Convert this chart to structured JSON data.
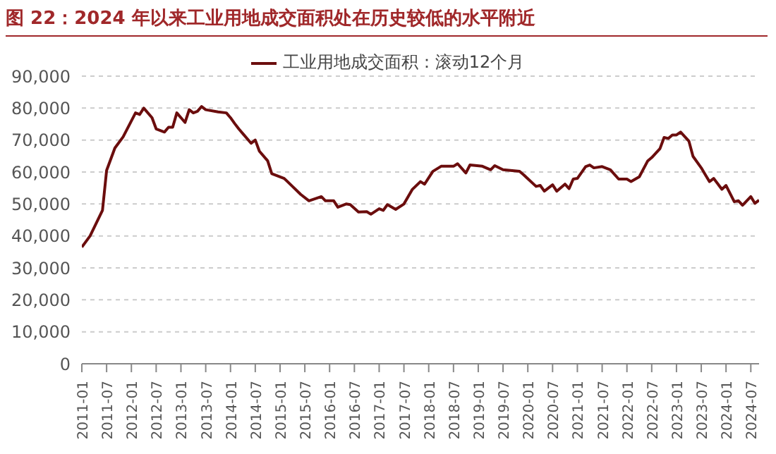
{
  "chart_data": {
    "type": "line",
    "title": "图 22：2024 年以来工业用地成交面积处在历史较低的水平附近",
    "x": [
      "2011-01",
      "2011-03",
      "2011-06",
      "2011-07",
      "2011-09",
      "2011-11",
      "2012-02",
      "2012-03",
      "2012-04",
      "2012-06",
      "2012-07",
      "2012-09",
      "2012-10",
      "2012-11",
      "2012-12",
      "2013-02",
      "2013-03",
      "2013-04",
      "2013-05",
      "2013-06",
      "2013-07",
      "2013-10",
      "2013-12",
      "2014-01",
      "2014-02",
      "2014-03",
      "2014-04",
      "2014-06",
      "2014-07",
      "2014-08",
      "2014-10",
      "2014-11",
      "2015-02",
      "2015-04",
      "2015-06",
      "2015-08",
      "2015-11",
      "2015-12",
      "2016-02",
      "2016-03",
      "2016-05",
      "2016-06",
      "2016-08",
      "2016-10",
      "2016-11",
      "2017-01",
      "2017-02",
      "2017-03",
      "2017-05",
      "2017-07",
      "2017-09",
      "2017-11",
      "2017-12",
      "2018-02",
      "2018-04",
      "2018-07",
      "2018-08",
      "2018-10",
      "2018-11",
      "2019-02",
      "2019-04",
      "2019-05",
      "2019-07",
      "2019-11",
      "2019-12",
      "2020-03",
      "2020-04",
      "2020-05",
      "2020-07",
      "2020-08",
      "2020-10",
      "2020-11",
      "2020-12",
      "2021-01",
      "2021-03",
      "2021-04",
      "2021-05",
      "2021-07",
      "2021-09",
      "2021-11",
      "2022-01",
      "2022-02",
      "2022-04",
      "2022-06",
      "2022-07",
      "2022-09",
      "2022-10",
      "2022-11",
      "2022-12",
      "2023-01",
      "2023-02",
      "2023-04",
      "2023-05",
      "2023-07",
      "2023-08",
      "2023-09",
      "2023-10",
      "2023-12",
      "2024-01",
      "2024-03",
      "2024-04",
      "2024-05",
      "2024-07",
      "2024-08",
      "2024-09"
    ],
    "series": [
      {
        "name": "工业用地成交面积：滚动12个月",
        "color": "#6b0d0d",
        "values": [
          36500,
          40000,
          48000,
          60500,
          67500,
          71000,
          78500,
          78000,
          80000,
          77000,
          73500,
          72500,
          74000,
          74000,
          78500,
          75500,
          79500,
          78500,
          79000,
          80500,
          79500,
          78800,
          78500,
          77000,
          75200,
          73500,
          72000,
          69000,
          70000,
          66500,
          63500,
          59500,
          58000,
          55500,
          53000,
          51000,
          52300,
          51000,
          51000,
          49000,
          50000,
          49800,
          47500,
          47600,
          46800,
          48500,
          48000,
          49800,
          48300,
          50000,
          54500,
          57000,
          56200,
          60200,
          61800,
          61800,
          62600,
          59700,
          62200,
          61800,
          60700,
          62000,
          60700,
          60200,
          59100,
          55500,
          55800,
          54000,
          56000,
          54000,
          56200,
          54800,
          57800,
          58000,
          61700,
          62200,
          61300,
          61700,
          60700,
          57800,
          57800,
          57000,
          58500,
          63400,
          64500,
          67300,
          70800,
          70500,
          71600,
          71600,
          72500,
          69700,
          64900,
          61300,
          59100,
          57000,
          58000,
          54600,
          55800,
          50700,
          51000,
          49600,
          52300,
          50200,
          51200
        ]
      }
    ],
    "xlim": [
      "2011-01",
      "2024-09"
    ],
    "xticks": [
      "2011-01",
      "2011-07",
      "2012-01",
      "2012-07",
      "2013-01",
      "2013-07",
      "2014-01",
      "2014-07",
      "2015-01",
      "2015-07",
      "2016-01",
      "2016-07",
      "2017-01",
      "2017-07",
      "2018-01",
      "2018-07",
      "2019-01",
      "2019-07",
      "2020-01",
      "2020-07",
      "2021-01",
      "2021-07",
      "2022-01",
      "2022-07",
      "2023-01",
      "2023-07",
      "2024-01",
      "2024-07"
    ],
    "ylim": [
      0,
      90000
    ],
    "yticks": [
      {
        "value": 0,
        "label": "0"
      },
      {
        "value": 10000,
        "label": "10,000"
      },
      {
        "value": 20000,
        "label": "20,000"
      },
      {
        "value": 30000,
        "label": "30,000"
      },
      {
        "value": 40000,
        "label": "40,000"
      },
      {
        "value": 50000,
        "label": "50,000"
      },
      {
        "value": 60000,
        "label": "60,000"
      },
      {
        "value": 70000,
        "label": "70,000"
      },
      {
        "value": 80000,
        "label": "80,000"
      },
      {
        "value": 90000,
        "label": "90,000"
      }
    ],
    "grid": "y",
    "legend": "top",
    "marker": "none",
    "line_style": "solid"
  }
}
